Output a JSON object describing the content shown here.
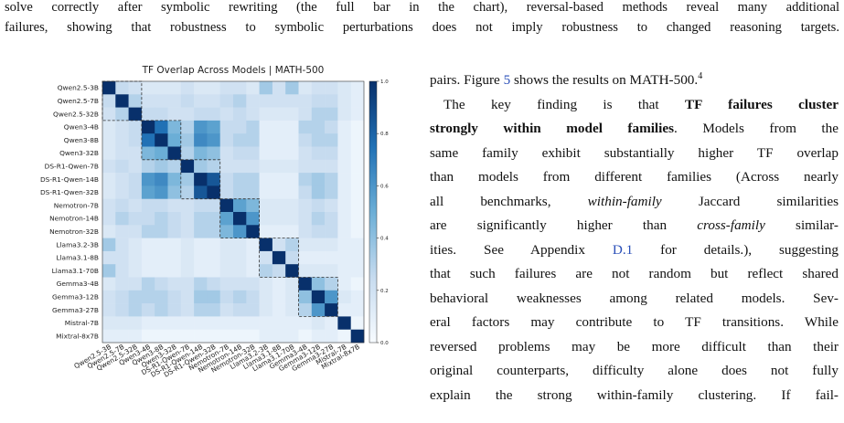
{
  "paper": {
    "top_lines": [
      "solve correctly after symbolic rewriting (the full bar in the chart), reversal-based methods reveal many additional",
      "failures, showing that robustness to symbolic perturbations does not imply robustness to changed reasoning targets."
    ],
    "right_lines": [
      [
        "pairs. Figure ",
        "5",
        " shows the results on MATH-500.",
        "4"
      ],
      [
        "The key finding is that ",
        "TF failures cluster"
      ],
      [
        "strongly within model families",
        ". Models from the"
      ],
      [
        "same family exhibit substantially higher TF overlap"
      ],
      [
        "than models from different families (Across nearly"
      ],
      [
        "all benchmarks, ",
        "within-family",
        " Jaccard similarities"
      ],
      [
        "are significantly higher than ",
        "cross-family",
        " similar-"
      ],
      [
        "ities. See Appendix ",
        "D.1",
        " for details.), suggesting"
      ],
      [
        "that such failures are not random but reflect shared"
      ],
      [
        "behavioral weaknesses among related models. Sev-"
      ],
      [
        "eral factors may contribute to TF transitions. While"
      ],
      [
        "reversed problems may be more difficult than their"
      ],
      [
        "original counterparts, difficulty alone does not fully"
      ],
      [
        "explain the strong within-family clustering. If fail-"
      ]
    ]
  },
  "chart_data": {
    "type": "heatmap",
    "title": "TF Overlap Across Models | MATH-500",
    "categories": [
      "Qwen2.5-3B",
      "Qwen2.5-7B",
      "Qwen2.5-32B",
      "Qwen3-4B",
      "Qwen3-8B",
      "Qwen3-32B",
      "DS-R1-Qwen-7B",
      "DS-R1-Qwen-14B",
      "DS-R1-Qwen-32B",
      "Nemotron-7B",
      "Nemotron-14B",
      "Nemotron-32B",
      "Llama3.2-3B",
      "Llama3.1-8B",
      "Llama3.1-70B",
      "Gemma3-4B",
      "Gemma3-12B",
      "Gemma3-27B",
      "Mistral-7B",
      "Mixtral-8x7B"
    ],
    "values": [
      [
        1,
        0.25,
        0.2,
        0.15,
        0.15,
        0.15,
        0.2,
        0.15,
        0.15,
        0.2,
        0.2,
        0.15,
        0.35,
        0.2,
        0.35,
        0.15,
        0.2,
        0.2,
        0.15,
        0.1
      ],
      [
        0.25,
        1,
        0.3,
        0.2,
        0.2,
        0.2,
        0.25,
        0.2,
        0.2,
        0.25,
        0.3,
        0.2,
        0.2,
        0.2,
        0.2,
        0.2,
        0.25,
        0.25,
        0.15,
        0.1
      ],
      [
        0.2,
        0.3,
        1,
        0.25,
        0.25,
        0.2,
        0.2,
        0.25,
        0.25,
        0.2,
        0.25,
        0.2,
        0.15,
        0.15,
        0.15,
        0.2,
        0.3,
        0.3,
        0.15,
        0.1
      ],
      [
        0.15,
        0.2,
        0.25,
        1,
        0.75,
        0.45,
        0.3,
        0.6,
        0.55,
        0.25,
        0.25,
        0.3,
        0.1,
        0.1,
        0.1,
        0.3,
        0.3,
        0.25,
        0.1,
        0.05
      ],
      [
        0.15,
        0.2,
        0.25,
        0.75,
        1,
        0.5,
        0.35,
        0.65,
        0.6,
        0.25,
        0.3,
        0.3,
        0.1,
        0.1,
        0.1,
        0.25,
        0.3,
        0.3,
        0.1,
        0.05
      ],
      [
        0.15,
        0.2,
        0.2,
        0.45,
        0.5,
        1,
        0.3,
        0.45,
        0.4,
        0.2,
        0.25,
        0.25,
        0.1,
        0.1,
        0.1,
        0.2,
        0.25,
        0.25,
        0.1,
        0.05
      ],
      [
        0.2,
        0.25,
        0.2,
        0.3,
        0.35,
        0.3,
        1,
        0.35,
        0.3,
        0.2,
        0.2,
        0.2,
        0.15,
        0.15,
        0.15,
        0.2,
        0.2,
        0.2,
        0.1,
        0.05
      ],
      [
        0.15,
        0.2,
        0.25,
        0.6,
        0.65,
        0.45,
        0.35,
        1,
        0.85,
        0.25,
        0.3,
        0.3,
        0.1,
        0.1,
        0.1,
        0.3,
        0.35,
        0.3,
        0.1,
        0.05
      ],
      [
        0.15,
        0.2,
        0.25,
        0.55,
        0.6,
        0.4,
        0.3,
        0.85,
        1,
        0.25,
        0.3,
        0.3,
        0.1,
        0.1,
        0.1,
        0.25,
        0.35,
        0.3,
        0.1,
        0.05
      ],
      [
        0.2,
        0.25,
        0.2,
        0.25,
        0.25,
        0.2,
        0.2,
        0.25,
        0.25,
        1,
        0.55,
        0.45,
        0.15,
        0.15,
        0.15,
        0.2,
        0.25,
        0.2,
        0.1,
        0.05
      ],
      [
        0.2,
        0.3,
        0.25,
        0.25,
        0.3,
        0.25,
        0.2,
        0.3,
        0.3,
        0.55,
        1,
        0.6,
        0.15,
        0.15,
        0.15,
        0.2,
        0.3,
        0.25,
        0.1,
        0.05
      ],
      [
        0.15,
        0.2,
        0.2,
        0.3,
        0.3,
        0.25,
        0.2,
        0.3,
        0.3,
        0.45,
        0.6,
        1,
        0.1,
        0.1,
        0.1,
        0.2,
        0.25,
        0.25,
        0.1,
        0.05
      ],
      [
        0.35,
        0.2,
        0.15,
        0.1,
        0.1,
        0.1,
        0.15,
        0.1,
        0.1,
        0.15,
        0.15,
        0.1,
        1,
        0.2,
        0.3,
        0.15,
        0.15,
        0.15,
        0.1,
        0.1
      ],
      [
        0.2,
        0.2,
        0.15,
        0.1,
        0.1,
        0.1,
        0.15,
        0.1,
        0.1,
        0.15,
        0.15,
        0.1,
        0.2,
        1,
        0.25,
        0.1,
        0.1,
        0.1,
        0.1,
        0.1
      ],
      [
        0.35,
        0.2,
        0.15,
        0.1,
        0.1,
        0.1,
        0.15,
        0.1,
        0.1,
        0.15,
        0.15,
        0.1,
        0.3,
        0.25,
        1,
        0.15,
        0.15,
        0.15,
        0.1,
        0.1
      ],
      [
        0.15,
        0.2,
        0.2,
        0.3,
        0.25,
        0.2,
        0.2,
        0.3,
        0.25,
        0.2,
        0.2,
        0.2,
        0.15,
        0.1,
        0.15,
        1,
        0.4,
        0.3,
        0.1,
        0.05
      ],
      [
        0.2,
        0.25,
        0.3,
        0.3,
        0.3,
        0.25,
        0.2,
        0.35,
        0.35,
        0.25,
        0.3,
        0.25,
        0.15,
        0.1,
        0.15,
        0.4,
        1,
        0.6,
        0.15,
        0.1
      ],
      [
        0.2,
        0.25,
        0.3,
        0.25,
        0.3,
        0.25,
        0.2,
        0.3,
        0.3,
        0.2,
        0.25,
        0.25,
        0.15,
        0.1,
        0.15,
        0.3,
        0.6,
        1,
        0.1,
        0.1
      ],
      [
        0.15,
        0.15,
        0.15,
        0.1,
        0.1,
        0.1,
        0.1,
        0.1,
        0.1,
        0.1,
        0.1,
        0.1,
        0.1,
        0.1,
        0.1,
        0.1,
        0.15,
        0.1,
        1,
        0.05
      ],
      [
        0.1,
        0.1,
        0.1,
        0.05,
        0.05,
        0.05,
        0.05,
        0.05,
        0.05,
        0.05,
        0.05,
        0.05,
        0.1,
        0.1,
        0.1,
        0.05,
        0.1,
        0.1,
        0.05,
        1
      ]
    ],
    "colormap": "Blues",
    "clim": [
      0,
      1
    ],
    "cticks": [
      {
        "value": 0,
        "label": "0.0"
      },
      0.2,
      0.4,
      0.6,
      0.8,
      {
        "value": 1,
        "label": "1.0"
      }
    ]
  }
}
